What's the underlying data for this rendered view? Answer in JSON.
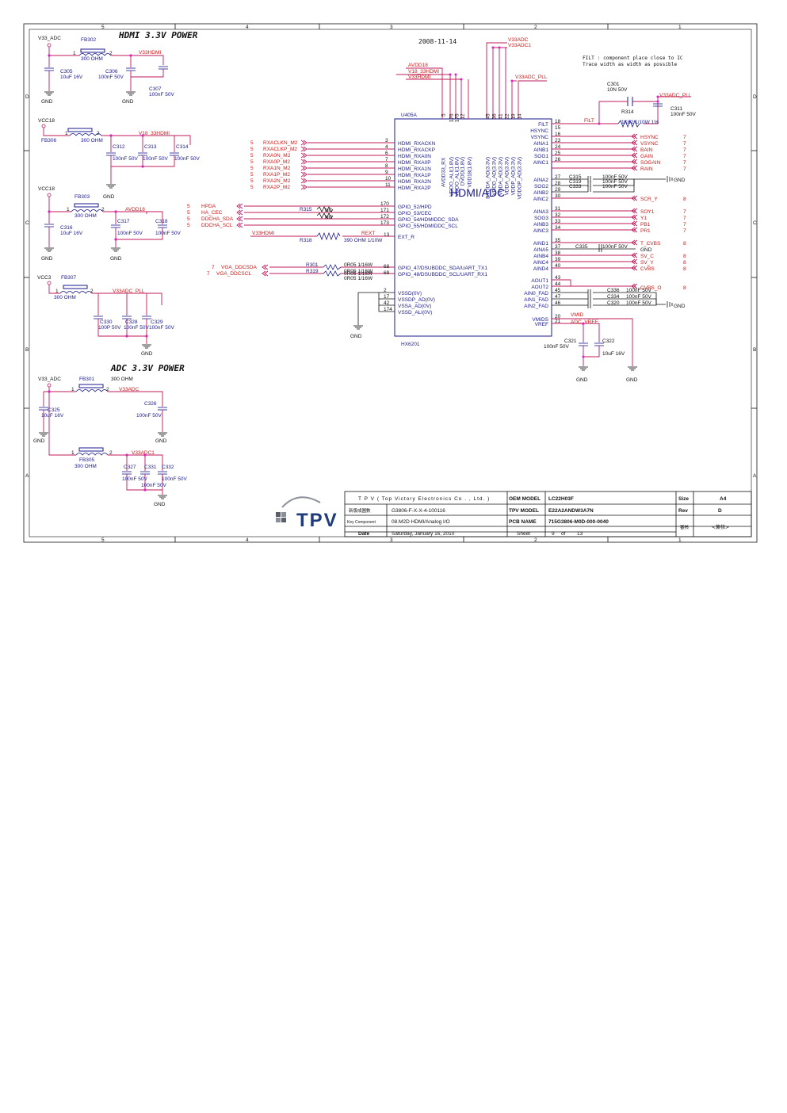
{
  "date": "2008-11-14",
  "notes": {
    "filt_line1": "FILT : component place close to IC",
    "filt_line2": "Trace width as width as possible"
  },
  "border": {
    "cols_top": [
      "5",
      "4",
      "3",
      "2",
      "1"
    ],
    "rows": [
      "D",
      "C",
      "B",
      "A"
    ]
  },
  "hdmi_power": {
    "title": "HDMI 3.3V POWER",
    "v33_adc": "V33_ADC",
    "fb302": "FB302",
    "fb302_val": "300 OHM",
    "v33hdmi": "V33HDMI",
    "c305": "C305",
    "c305_val": "10uF 16V",
    "c306": "C306",
    "c306_val": "100nF 50V",
    "c307": "C307",
    "c307_val": "100nF 50V",
    "gnd": "GND",
    "vcc18a": "VCC18",
    "fb306": "FB306",
    "fb306_val": "300 OHM",
    "v18_33hdmi": "V18_33HDMI",
    "c312": "C312",
    "c313": "C313",
    "c314": "C314",
    "cap100": "100nF 50V",
    "vcc18b": "VCC18",
    "fb303": "FB303",
    "fb303_val": "300 OHM",
    "avdd18": "AVDD18",
    "c316": "C316",
    "c316_val": "10uF 16V",
    "c317": "C317",
    "c318": "C318",
    "vcc3": "VCC3",
    "fb307": "FB307",
    "fb307_val": "300 OHM",
    "v33adc_pll": "V33ADC_PLL",
    "c330": "C330",
    "c330_val": "100P 50V",
    "c328": "C328",
    "c329": "C329",
    "n1": "1",
    "n2": "2"
  },
  "adc_power": {
    "title": "ADC 3.3V POWER",
    "v33_adc": "V33_ADC",
    "fb301": "FB301",
    "fb301_val": "300 OHM",
    "v33adc": "V33ADC",
    "c325": "C325",
    "c325_val": "10uF 16V",
    "c326": "C326",
    "c326_val": "100nF 50V",
    "fb305": "FB305",
    "fb305_val": "300 OHM",
    "v33adc1": "V33ADC1",
    "c327": "C327",
    "c331": "C331",
    "c332": "C332",
    "cap100": "100nF 50V",
    "gnd": "GND"
  },
  "ic": {
    "ref": "U405A",
    "part": "HX6201",
    "title": "HDMI/ADC",
    "top_pins": [
      {
        "num": "5",
        "name": "AVDD33_RX"
      },
      {
        "num": "176",
        "name": "VDDO_ALI(1.8V)"
      },
      {
        "num": "175",
        "name": "VDDO_ALI(1.8V)"
      },
      {
        "num": "12",
        "name": "DVDD(1.8V)"
      },
      {
        "num": "",
        "name": "VDD18(1.8V)"
      },
      {
        "num": "45",
        "name": "BVDDA_AD(3.3V)"
      },
      {
        "num": "36",
        "name": "VDDD_AD(3.3V)"
      },
      {
        "num": "41",
        "name": "VDDA_AD(3.3V)"
      },
      {
        "num": "22",
        "name": "VDDA_AD(3.3V)"
      },
      {
        "num": "19",
        "name": "VDDP_AD(3.3V)"
      },
      {
        "num": "14",
        "name": "VDDOP_AD(3.3V)"
      }
    ],
    "top_nets": {
      "avdd18": "AVDD18",
      "v18_33hdmi": "V18_33HDMI",
      "v33hdmi": "V33HDMI",
      "v33adc": "V33ADC",
      "v33adc1": "V33ADC1",
      "v33adc_pll": "V33ADC_PLL"
    },
    "left_hdmi": [
      {
        "sheet": "5",
        "net": "RXACLKN_M2",
        "pin": "3",
        "name": "HDMI_RXACKN"
      },
      {
        "sheet": "5",
        "net": "RXACLKP_M2",
        "pin": "4",
        "name": "HDMI_RXACKP"
      },
      {
        "sheet": "5",
        "net": "RXA0N_M2",
        "pin": "6",
        "name": "HDMI_RXA0N"
      },
      {
        "sheet": "5",
        "net": "RXA0P_M2",
        "pin": "7",
        "name": "HDMI_RXA0P"
      },
      {
        "sheet": "5",
        "net": "RXA1N_M2",
        "pin": "8",
        "name": "HDMI_RXA1N"
      },
      {
        "sheet": "5",
        "net": "RXA1P_M2",
        "pin": "9",
        "name": "HDMI_RXA1P"
      },
      {
        "sheet": "5",
        "net": "RXA2N_M2",
        "pin": "10",
        "name": "HDMI_RXA2N"
      },
      {
        "sheet": "5",
        "net": "RXA2P_M2",
        "pin": "11",
        "name": "HDMI_RXA2P"
      }
    ],
    "left_gpio": [
      {
        "sheet": "5",
        "net": "HPDA",
        "pin": "170",
        "name": "GPIO_52/HPD"
      },
      {
        "sheet": "5",
        "net": "HA_CEC",
        "pin": "171",
        "name": "GPIO_53/CEC"
      },
      {
        "sheet": "5",
        "net": "DDCHA_SDA",
        "pin": "172",
        "name": "GPIO_54/HDMIDDC_SDA"
      },
      {
        "sheet": "5",
        "net": "DDCHA_SCL",
        "pin": "173",
        "name": "GPIO_55/HDMIDDC_SCL"
      }
    ],
    "r315": "R315",
    "nc1": "NC",
    "nc2": "NC",
    "v33hdmi": "V33HDMI",
    "r318": "R318",
    "r318_val": "390 OHM 1/10W",
    "rext": "REXT",
    "rext_pin": "13",
    "ext_r": "EXT_R",
    "vga": [
      {
        "sheet": "7",
        "net": "VGA_DDCSDA",
        "ref": "R301",
        "val": "0R05 1/16W",
        "pin": "68",
        "name": "GPIO_47/DSUBDDC_SDA/UART_TX1"
      },
      {
        "sheet": "7",
        "net": "VGA_DDCSCL",
        "ref": "R319",
        "val": "0R05 1/16W",
        "pin": "69",
        "name": "GPIO_48/DSUBDDC_SCL/UART_RX1"
      }
    ],
    "vga_dup": "0R05 1/16W",
    "ground_pins": [
      {
        "pin": "2",
        "name": "VSSD(0V)"
      },
      {
        "pin": "17",
        "name": "VSSDP_AD(0V)"
      },
      {
        "pin": "42",
        "name": "VSSA_AD(0V)"
      },
      {
        "pin": "174",
        "name": "VSSD_ALI(0V)"
      }
    ],
    "right_top": [
      {
        "pin": "18",
        "name": "FILT"
      },
      {
        "pin": "15",
        "name": "HSYNC"
      },
      {
        "pin": "16",
        "name": "VSYNC"
      },
      {
        "pin": "23",
        "name": "AINA1"
      },
      {
        "pin": "24",
        "name": "AINB1"
      },
      {
        "pin": "25",
        "name": "SOG1"
      },
      {
        "pin": "26",
        "name": "AINC1"
      }
    ],
    "right_nets1": [
      {
        "net": "HSYNC",
        "sheet": "7"
      },
      {
        "net": "VSYNC",
        "sheet": "7"
      },
      {
        "net": "BAIN",
        "sheet": "7"
      },
      {
        "net": "GAIN",
        "sheet": "7"
      },
      {
        "net": "SOGAIN",
        "sheet": "7"
      },
      {
        "net": "RAIN",
        "sheet": "7"
      }
    ],
    "right_mid": [
      {
        "pin": "27",
        "name": "AINA2"
      },
      {
        "pin": "28",
        "name": "SOG2"
      },
      {
        "pin": "29",
        "name": "AINB2"
      },
      {
        "pin": "30",
        "name": "AINC2"
      }
    ],
    "caps_mid": [
      {
        "ref": "C315",
        "val": "100nF 50V"
      },
      {
        "ref": "C319",
        "val": "100nF 50V"
      },
      {
        "ref": "C333",
        "val": "100nF 50V"
      }
    ],
    "scr_y": "SCR_Y",
    "scr_sheet": "8",
    "right_low": [
      {
        "pin": "31",
        "name": "AINA3"
      },
      {
        "pin": "32",
        "name": "SOG3"
      },
      {
        "pin": "33",
        "name": "AINB3"
      },
      {
        "pin": "34",
        "name": "AINC3"
      }
    ],
    "right_nets2": [
      {
        "net": "SOY1",
        "sheet": "7"
      },
      {
        "net": "Y1",
        "sheet": "7"
      },
      {
        "net": "PB1",
        "sheet": "7"
      },
      {
        "net": "PR1",
        "sheet": "7"
      }
    ],
    "right_ain": [
      {
        "pin": "35",
        "name": "AIND1"
      },
      {
        "pin": "37",
        "name": "AINA5"
      },
      {
        "pin": "38",
        "name": "AINB4"
      },
      {
        "pin": "39",
        "name": "AINC4"
      },
      {
        "pin": "40",
        "name": "AIND4"
      }
    ],
    "right_nets3": [
      {
        "net": "T_CVBS",
        "sheet": "8"
      },
      {
        "net": "GND",
        "sheet": ""
      },
      {
        "net": "SV_C",
        "sheet": "8"
      },
      {
        "net": "SV_Y",
        "sheet": "8"
      },
      {
        "net": "CVBS",
        "sheet": "8"
      }
    ],
    "c335": "C335",
    "c335_val": "100nF 50V",
    "right_out": [
      {
        "pin": "43",
        "name": "AOUT1"
      },
      {
        "pin": "44",
        "name": "AOUT2"
      },
      {
        "pin": "45",
        "name": "AIN0_FAD"
      },
      {
        "pin": "47",
        "name": "AIN1_FAD"
      },
      {
        "pin": "46",
        "name": "AIN2_FAD"
      }
    ],
    "cvbs_o": "CVBS_O",
    "cvbs_o_sheet": "8",
    "caps_out": [
      {
        "ref": "C336",
        "val": "100nF 50V"
      },
      {
        "ref": "C334",
        "val": "100nF 50V"
      },
      {
        "ref": "C320",
        "val": "100nF 50V"
      }
    ],
    "right_v": [
      {
        "pin": "20",
        "name": "VMIDS"
      },
      {
        "pin": "21",
        "name": "VREF"
      }
    ],
    "vmid": "VMID",
    "adc_vref": "ADC_VREF",
    "c321": "C321",
    "c321_val": "100nF 50V",
    "c322": "C322",
    "c322_val": "10uF 16V",
    "filt_net": "FILT",
    "c301": "C301",
    "c301_val": "10N 50V",
    "r314": "R314",
    "r314_val": "1K62 1/10W 1%",
    "v33adc_pll": "V33ADC_PLL",
    "c311": "C311",
    "c311_val": "100nF 50V",
    "gnd": "GND"
  },
  "title_block": {
    "company": "T P V ( Top Victory Electronics Co . , Ltd. )",
    "oem_label": "OEM MODEL",
    "oem_value": "LC22H03F",
    "size_label": "Size",
    "size_value": "A4",
    "row2_label": "新版成圖數",
    "row2_value": "G3806-F-X-X-4-100116",
    "tpv_label": "TPV MODEL",
    "tpv_value": "E22A2ANDW3A7N",
    "rev_label": "Rev",
    "rev_value": "D",
    "key_label": "Key Component",
    "key_value": "08.M2D HDMI/Analog I/O",
    "pcb_label": "PCB NAME",
    "pcb_value": "715G3806-M0D-000-0040",
    "sign_label": "審核",
    "sign_value": "<簽核>",
    "date_label": "Date",
    "date_value": "Saturday, January 16, 2010",
    "sheet_label": "Sheet",
    "sheet_num": "9",
    "sheet_of": "of",
    "sheet_total": "13",
    "logo": "TPV"
  }
}
